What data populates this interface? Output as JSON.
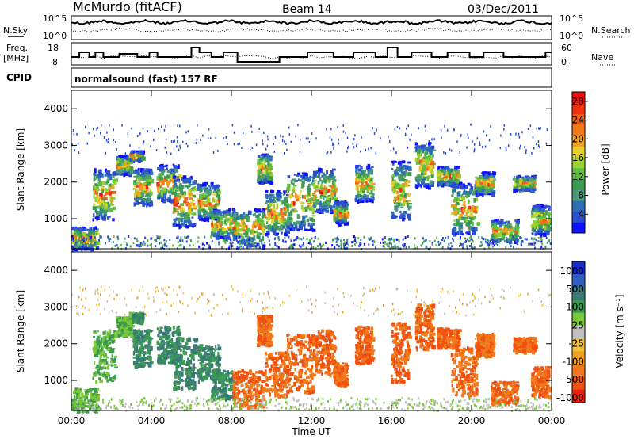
{
  "header": {
    "station": "McMurdo (fitACF)",
    "beam": "Beam 14",
    "date": "03/Dec/2011"
  },
  "status_panels": {
    "nsky_label": "N.Sky",
    "nsearch_label": "N.Search",
    "noise_ticks": [
      "10^5",
      "10^0"
    ],
    "freq_label": "Freq.",
    "freq_unit": "[MHz]",
    "freq_ticks": [
      18,
      8
    ],
    "nave_label": "Nave",
    "nave_ticks": [
      60,
      0
    ],
    "cpid_label": "CPID",
    "cpid_text": "normalsound (fast) 157 RF"
  },
  "chart_data": [
    {
      "type": "heatmap",
      "name": "power",
      "title": "",
      "xlabel": "",
      "ylabel": "Slant Range [km]",
      "x_ticks": [
        "00:00",
        "04:00",
        "08:00",
        "12:00",
        "16:00",
        "20:00",
        "00:00"
      ],
      "xlim_hours": [
        0,
        24
      ],
      "y_ticks": [
        1000,
        2000,
        3000,
        4000
      ],
      "ylim": [
        180,
        4500
      ],
      "colorbar": {
        "label": "Power [dB]",
        "ticks": [
          4,
          8,
          12,
          16,
          20,
          24,
          28
        ],
        "range": [
          0,
          30
        ],
        "colors": [
          "#1010ff",
          "#2a4fd0",
          "#2f6fb8",
          "#4a9a78",
          "#3b9a52",
          "#5fbf3f",
          "#9ad02f",
          "#e8d02a",
          "#f0a020",
          "#f07a1a",
          "#f05a15",
          "#f03010",
          "#e81010"
        ]
      }
    },
    {
      "type": "heatmap",
      "name": "velocity",
      "title": "",
      "xlabel": "Time UT",
      "ylabel": "Slant Range [km]",
      "x_ticks": [
        "00:00",
        "04:00",
        "08:00",
        "12:00",
        "16:00",
        "20:00",
        "00:00"
      ],
      "xlim_hours": [
        0,
        24
      ],
      "y_ticks": [
        1000,
        2000,
        3000,
        4000
      ],
      "ylim": [
        180,
        4500
      ],
      "colorbar": {
        "label": "Velocity [m s⁻¹]",
        "ticks": [
          "1000",
          "500",
          "100",
          "25",
          "-25",
          "-100",
          "-500",
          "-1000"
        ],
        "colors": [
          "#1a2acc",
          "#2f5fc0",
          "#3a7a78",
          "#3b9a52",
          "#7ac83a",
          "#c0c0c0",
          "#f0c040",
          "#f0a020",
          "#f07a1a",
          "#f05010",
          "#e82010"
        ]
      }
    }
  ]
}
